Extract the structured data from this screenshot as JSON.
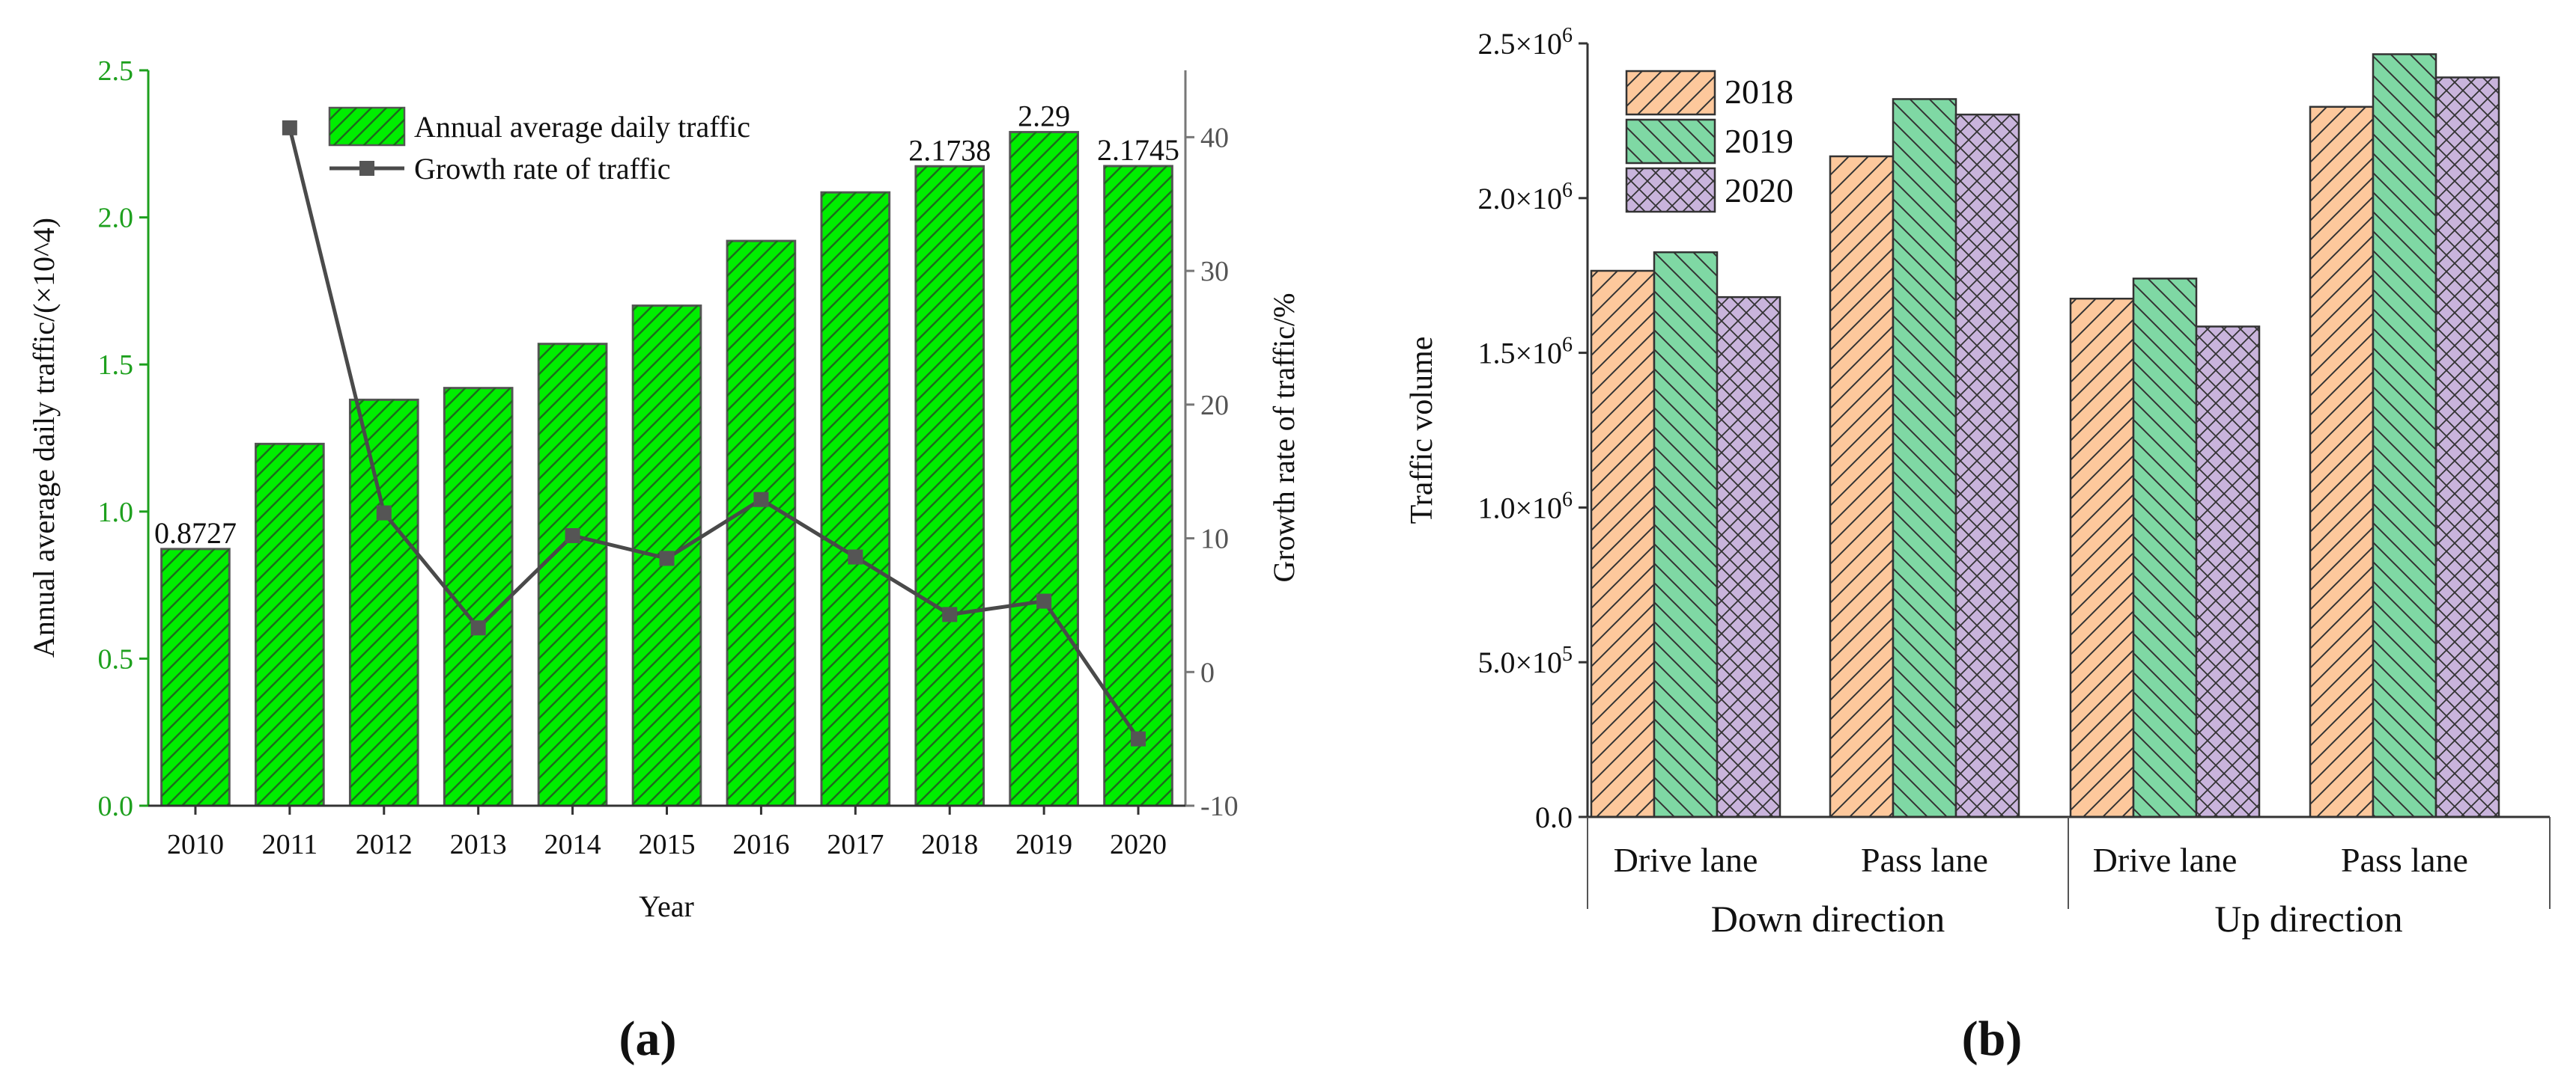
{
  "chart_data": [
    {
      "panel": "a",
      "type": "bar+line",
      "categories": [
        "2010",
        "2011",
        "2012",
        "2013",
        "2014",
        "2015",
        "2016",
        "2017",
        "2018",
        "2019",
        "2020"
      ],
      "series": [
        {
          "name": "Annual average daily traffic",
          "type": "bar",
          "axis": "left",
          "values": [
            0.8727,
            1.23,
            1.38,
            1.42,
            1.57,
            1.7,
            1.92,
            2.085,
            2.1738,
            2.29,
            2.1745
          ]
        },
        {
          "name": "Growth rate of traffic",
          "type": "line",
          "axis": "right",
          "values": [
            null,
            40.7,
            11.9,
            3.3,
            10.2,
            8.5,
            12.9,
            8.6,
            4.3,
            5.3,
            -5.0
          ]
        }
      ],
      "bar_labels": [
        {
          "index": 0,
          "text": "0.8727"
        },
        {
          "index": 8,
          "text": "2.1738"
        },
        {
          "index": 9,
          "text": "2.29"
        },
        {
          "index": 10,
          "text": "2.1745"
        }
      ],
      "xlabel": "Year",
      "ylabel": "Annual average daily traffic/(×10^4)",
      "y2label": "Growth rate of traffic/%",
      "ylim": [
        0,
        2.5
      ],
      "y2lim": [
        -10,
        45
      ],
      "yticks": [
        "0.0",
        "0.5",
        "1.0",
        "1.5",
        "2.0",
        "2.5"
      ],
      "y2ticks": [
        "-10",
        "0",
        "10",
        "20",
        "30",
        "40"
      ],
      "legend_position": "top-left",
      "colors": {
        "bar": "#00ee00",
        "bar_edge": "#555555",
        "line": "#4a4a4a",
        "left_axis": "#1ea01e"
      },
      "caption": "(a)"
    },
    {
      "panel": "b",
      "type": "bar",
      "groups": [
        {
          "direction": "Down direction",
          "lane": "Drive lane"
        },
        {
          "direction": "Down direction",
          "lane": "Pass lane"
        },
        {
          "direction": "Up direction",
          "lane": "Drive lane"
        },
        {
          "direction": "Up direction",
          "lane": "Pass lane"
        }
      ],
      "directions": [
        "Down direction",
        "Up direction"
      ],
      "series": [
        {
          "name": "2018",
          "values": [
            1765000,
            2135000,
            1675000,
            2295000
          ]
        },
        {
          "name": "2019",
          "values": [
            1825000,
            2320000,
            1740000,
            2465000
          ]
        },
        {
          "name": "2020",
          "values": [
            1680000,
            2270000,
            1585000,
            2390000
          ]
        }
      ],
      "ylabel": "Traffic volume",
      "ylim": [
        0,
        2500000
      ],
      "yticks": [
        {
          "value": 0,
          "mantissa": "0.0",
          "exponent": ""
        },
        {
          "value": 500000,
          "mantissa": "5.0×10",
          "exponent": "5"
        },
        {
          "value": 1000000,
          "mantissa": "1.0×10",
          "exponent": "6"
        },
        {
          "value": 1500000,
          "mantissa": "1.5×10",
          "exponent": "6"
        },
        {
          "value": 2000000,
          "mantissa": "2.0×10",
          "exponent": "6"
        },
        {
          "value": 2500000,
          "mantissa": "2.5×10",
          "exponent": "6"
        }
      ],
      "legend_position": "top-left",
      "colors": {
        "2018": "#fdc89c",
        "2019": "#7fd8a4",
        "2020": "#c9b4dc",
        "edge": "#333333"
      },
      "caption": "(b)"
    }
  ]
}
